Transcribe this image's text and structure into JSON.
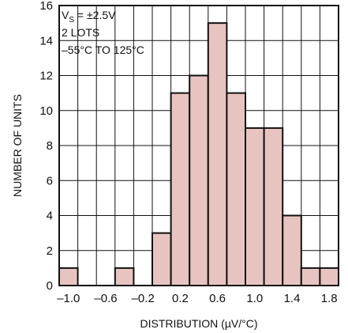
{
  "chart_data": {
    "type": "bar",
    "title": "",
    "xlabel": "DISTRIBUTION (µV/°C)",
    "ylabel": "NUMBER OF UNITS",
    "xlim": [
      -1.1,
      1.9
    ],
    "ylim": [
      0,
      16
    ],
    "bin_width": 0.2,
    "x_ticks": [
      "–1.0",
      "–0.6",
      "–0.2",
      "0.2",
      "0.6",
      "1.0",
      "1.4",
      "1.8"
    ],
    "x_tick_values": [
      -1.0,
      -0.6,
      -0.2,
      0.2,
      0.6,
      1.0,
      1.4,
      1.8
    ],
    "y_ticks": [
      "0",
      "2",
      "4",
      "6",
      "8",
      "10",
      "12",
      "14",
      "16"
    ],
    "y_tick_values": [
      0,
      2,
      4,
      6,
      8,
      10,
      12,
      14,
      16
    ],
    "grid": true,
    "bar_color": "#e8c4c0",
    "bins": [
      {
        "x": -1.0,
        "count": 1
      },
      {
        "x": -0.8,
        "count": 0
      },
      {
        "x": -0.6,
        "count": 0
      },
      {
        "x": -0.4,
        "count": 1
      },
      {
        "x": -0.2,
        "count": 0
      },
      {
        "x": 0.0,
        "count": 3
      },
      {
        "x": 0.2,
        "count": 11
      },
      {
        "x": 0.4,
        "count": 12
      },
      {
        "x": 0.6,
        "count": 15
      },
      {
        "x": 0.8,
        "count": 11
      },
      {
        "x": 1.0,
        "count": 9
      },
      {
        "x": 1.2,
        "count": 9
      },
      {
        "x": 1.4,
        "count": 4
      },
      {
        "x": 1.6,
        "count": 1
      },
      {
        "x": 1.8,
        "count": 1
      }
    ],
    "annotation": {
      "vs_prefix": "V",
      "vs_sub": "S",
      "vs_value": " = ±2.5V",
      "line2": "2 LOTS",
      "line3": "–55°C TO 125°C"
    }
  }
}
